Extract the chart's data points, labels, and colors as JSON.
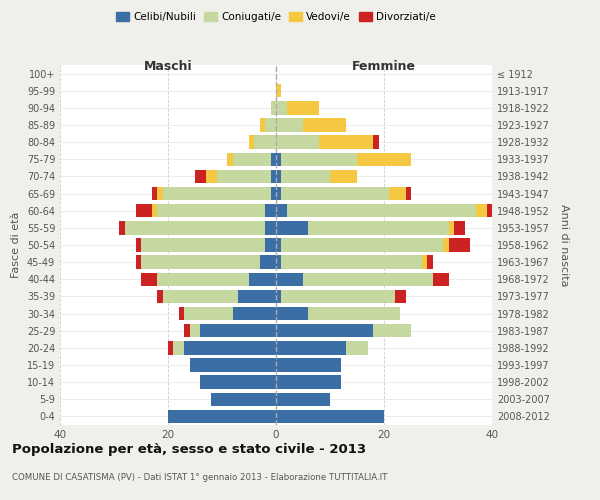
{
  "age_groups": [
    "0-4",
    "5-9",
    "10-14",
    "15-19",
    "20-24",
    "25-29",
    "30-34",
    "35-39",
    "40-44",
    "45-49",
    "50-54",
    "55-59",
    "60-64",
    "65-69",
    "70-74",
    "75-79",
    "80-84",
    "85-89",
    "90-94",
    "95-99",
    "100+"
  ],
  "birth_years": [
    "2008-2012",
    "2003-2007",
    "1998-2002",
    "1993-1997",
    "1988-1992",
    "1983-1987",
    "1978-1982",
    "1973-1977",
    "1968-1972",
    "1963-1967",
    "1958-1962",
    "1953-1957",
    "1948-1952",
    "1943-1947",
    "1938-1942",
    "1933-1937",
    "1928-1932",
    "1923-1927",
    "1918-1922",
    "1913-1917",
    "≤ 1912"
  ],
  "males": {
    "celibi": [
      20,
      12,
      14,
      16,
      17,
      14,
      8,
      7,
      5,
      3,
      2,
      2,
      2,
      1,
      1,
      1,
      0,
      0,
      0,
      0,
      0
    ],
    "coniugati": [
      0,
      0,
      0,
      0,
      2,
      2,
      9,
      14,
      17,
      22,
      23,
      26,
      20,
      20,
      10,
      7,
      4,
      2,
      1,
      0,
      0
    ],
    "vedovi": [
      0,
      0,
      0,
      0,
      0,
      0,
      0,
      0,
      0,
      0,
      0,
      0,
      1,
      1,
      2,
      1,
      1,
      1,
      0,
      0,
      0
    ],
    "divorziati": [
      0,
      0,
      0,
      0,
      1,
      1,
      1,
      1,
      3,
      1,
      1,
      1,
      3,
      1,
      2,
      0,
      0,
      0,
      0,
      0,
      0
    ]
  },
  "females": {
    "nubili": [
      20,
      10,
      12,
      12,
      13,
      18,
      6,
      1,
      5,
      1,
      1,
      6,
      2,
      1,
      1,
      1,
      0,
      0,
      0,
      0,
      0
    ],
    "coniugate": [
      0,
      0,
      0,
      0,
      4,
      7,
      17,
      21,
      24,
      26,
      30,
      26,
      35,
      20,
      9,
      14,
      8,
      5,
      2,
      0,
      0
    ],
    "vedove": [
      0,
      0,
      0,
      0,
      0,
      0,
      0,
      0,
      0,
      1,
      1,
      1,
      2,
      3,
      5,
      10,
      10,
      8,
      6,
      1,
      0
    ],
    "divorziate": [
      0,
      0,
      0,
      0,
      0,
      0,
      0,
      2,
      3,
      1,
      4,
      2,
      1,
      1,
      0,
      0,
      1,
      0,
      0,
      0,
      0
    ]
  },
  "colors": {
    "celibi": "#3a6ea5",
    "coniugati": "#c5d8a0",
    "vedovi": "#f5c842",
    "divorziati": "#cc2222"
  },
  "legend_labels": [
    "Celibi/Nubili",
    "Coniugati/e",
    "Vedovi/e",
    "Divorziati/e"
  ],
  "title": "Popolazione per età, sesso e stato civile - 2013",
  "subtitle": "COMUNE DI CASATISMA (PV) - Dati ISTAT 1° gennaio 2013 - Elaborazione TUTTITALIA.IT",
  "xlabel_left": "Maschi",
  "xlabel_right": "Femmine",
  "ylabel_left": "Fasce di età",
  "ylabel_right": "Anni di nascita",
  "xlim": 40,
  "bg_color": "#f0f0eb",
  "plot_bg": "#ffffff"
}
